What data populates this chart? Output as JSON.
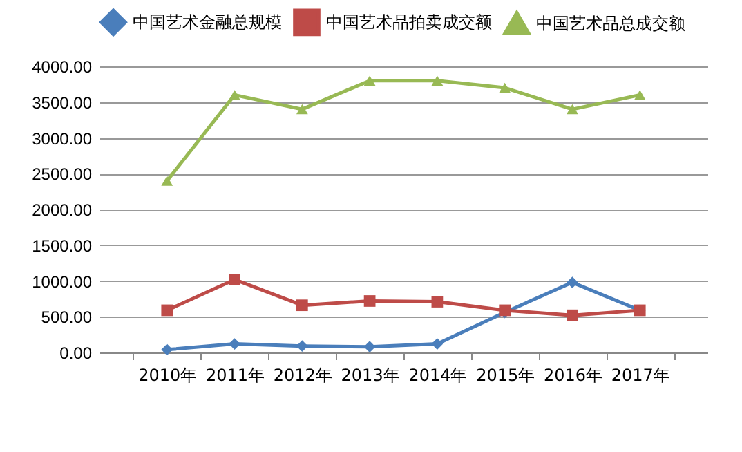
{
  "chart_data": {
    "type": "line",
    "categories": [
      "2010年",
      "2011年",
      "2012年",
      "2013年",
      "2014年",
      "2015年",
      "2016年",
      "2017年"
    ],
    "series": [
      {
        "name": "中国艺术金融总规模",
        "color": "#4a7ebb",
        "marker": "diamond",
        "values": [
          40,
          120,
          90,
          80,
          120,
          560,
          980,
          590
        ]
      },
      {
        "name": "中国艺术品拍卖成交额",
        "color": "#be4b48",
        "marker": "square",
        "values": [
          590,
          1020,
          660,
          720,
          710,
          590,
          520,
          590
        ]
      },
      {
        "name": "中国艺术品总成交额",
        "color": "#98b954",
        "marker": "triangle",
        "values": [
          2400,
          3600,
          3400,
          3800,
          3800,
          3700,
          3400,
          3600
        ]
      }
    ],
    "ylim": [
      0,
      4000
    ],
    "yticks": [
      {
        "value": 0,
        "label": "0.00"
      },
      {
        "value": 500,
        "label": "500.00"
      },
      {
        "value": 1000,
        "label": "1000.00"
      },
      {
        "value": 1500,
        "label": "1500.00"
      },
      {
        "value": 2000,
        "label": "2000.00"
      },
      {
        "value": 2500,
        "label": "2500.00"
      },
      {
        "value": 3000,
        "label": "3000.00"
      },
      {
        "value": 3500,
        "label": "3500.00"
      },
      {
        "value": 4000,
        "label": "4000.00"
      }
    ],
    "grid": "y",
    "legend": "top",
    "line_style": "solid"
  }
}
